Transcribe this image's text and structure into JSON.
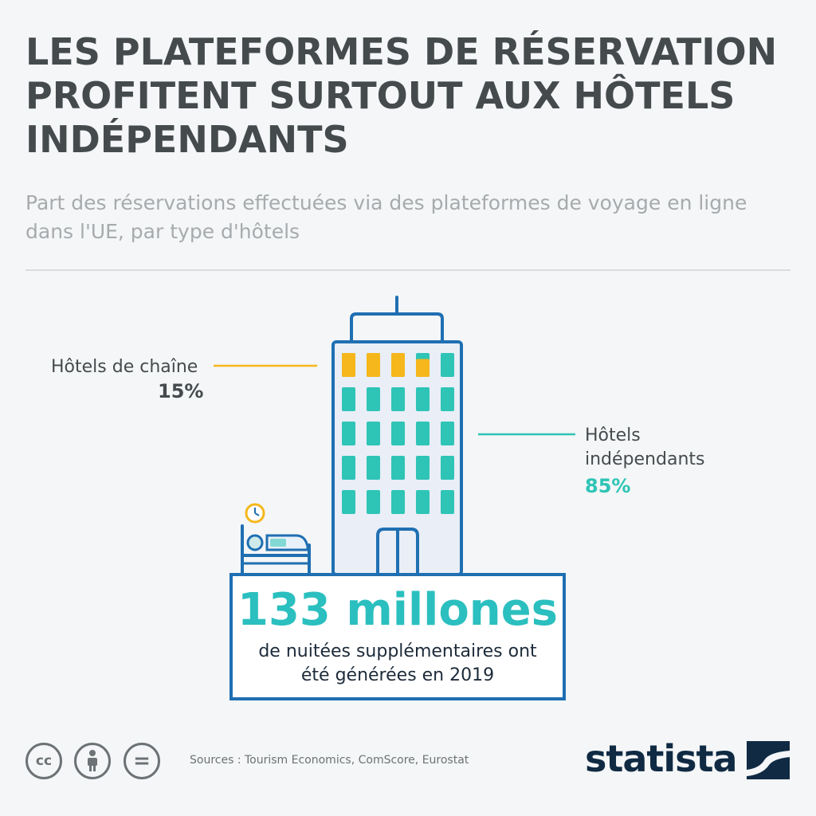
{
  "title": "LES PLATEFORMES DE RÉSERVATION PROFITENT SURTOUT AUX HÔTELS INDÉPENDANTS",
  "subtitle": "Part des réservations effectuées via des plateformes de voyage en ligne dans l'UE, par type d'hôtels",
  "chart_data": {
    "type": "pictogram",
    "title": "LES PLATEFORMES DE RÉSERVATION PROFITENT SURTOUT AUX HÔTELS INDÉPENDANTS",
    "subtitle": "Part des réservations effectuées via des plateformes de voyage en ligne dans l'UE, par type d'hôtels",
    "categories": [
      "Hôtels de chaîne",
      "Hôtels indépendants"
    ],
    "values": [
      15,
      85
    ],
    "unit": "%",
    "labels": {
      "chain_name": "Hôtels de chaîne",
      "chain_value": "15%",
      "indep_name_line1": "Hôtels",
      "indep_name_line2": "indépendants",
      "indep_value": "85%"
    },
    "colors": {
      "chain": "#f5b71c",
      "independent": "#2ec4b6",
      "outline": "#1f6fb2"
    }
  },
  "highlight": {
    "number": "133 millones",
    "text_line1": "de nuitées supplémentaires ont",
    "text_line2": "été générées en 2019"
  },
  "footer": {
    "sources": "Sources : Tourism Economics, ComScore, Eurostat",
    "license_icons": [
      "cc-icon",
      "by-icon",
      "nd-icon"
    ],
    "cc_label": "cc",
    "nd_label": "="
  },
  "brand": {
    "name": "statista",
    "color": "#102a43"
  }
}
